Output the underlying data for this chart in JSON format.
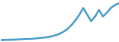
{
  "x": [
    0,
    1,
    2,
    3,
    4,
    5,
    6,
    7,
    8,
    9,
    10,
    11,
    12,
    13,
    14,
    15,
    16,
    17,
    18,
    19,
    20,
    21,
    22,
    23,
    24,
    25,
    26,
    27,
    28,
    29,
    30
  ],
  "y": [
    1,
    1.1,
    1.15,
    1.2,
    1.3,
    1.4,
    1.5,
    1.6,
    1.7,
    1.9,
    2.1,
    2.3,
    2.6,
    3.0,
    3.6,
    4.4,
    5.5,
    7.0,
    9.0,
    11.5,
    14.5,
    18.0,
    14.5,
    11.0,
    13.5,
    17.0,
    13.5,
    15.5,
    18.0,
    19.5,
    20.5
  ],
  "line_color": "#4d9fcc",
  "line_width": 1.4,
  "background_color": "#ffffff",
  "ylim": [
    0.5,
    22
  ],
  "xlim": [
    0,
    30
  ]
}
